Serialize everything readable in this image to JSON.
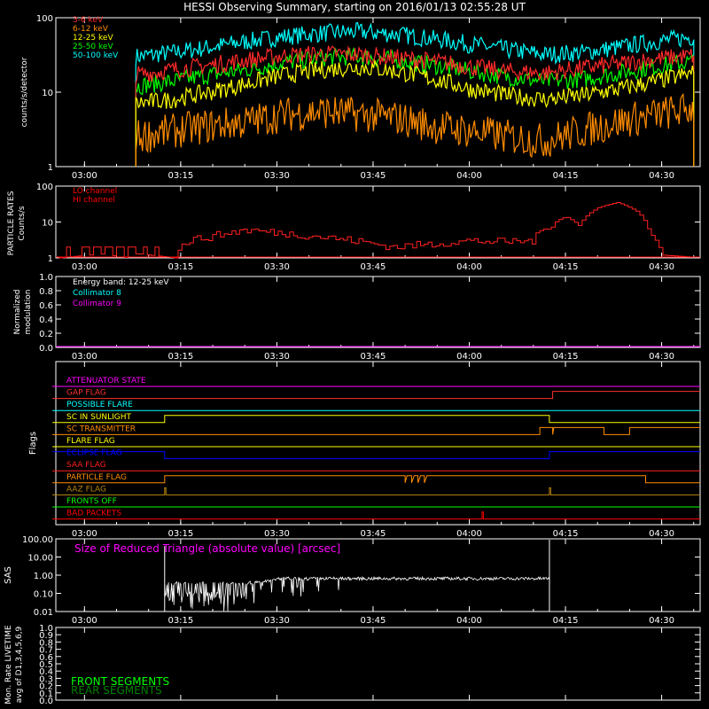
{
  "title": "HESSI Observing Summary, starting on 2016/01/13 02:55:28 UT",
  "time_ticks": [
    "03:00",
    "03:15",
    "03:30",
    "03:45",
    "04:00",
    "04:15",
    "04:30"
  ],
  "chart_data": [
    {
      "type": "line",
      "name": "count-rates",
      "ylabel": "counts/s/detector",
      "scale": "log",
      "ylim": [
        1,
        100
      ],
      "yticks": [
        {
          "v": 1,
          "l": "1"
        },
        {
          "v": 10,
          "l": "10"
        },
        {
          "v": 100,
          "l": "100"
        }
      ],
      "x_range_minutes": [
        8,
        95
      ],
      "series": [
        {
          "name": "3-6 keV",
          "color": "#ff2a2a",
          "shape": [
            17,
            20,
            23,
            27,
            31,
            33,
            32,
            29,
            26,
            22,
            19,
            18,
            21,
            24,
            28,
            31
          ]
        },
        {
          "name": "6-12 keV",
          "color": "#ff8c00",
          "shape": [
            2.5,
            3,
            3.5,
            4,
            5,
            5.5,
            5,
            4.5,
            3.5,
            3,
            2.5,
            2.2,
            3,
            4,
            5,
            6
          ]
        },
        {
          "name": "12-25 keV",
          "color": "#ffff00",
          "shape": [
            7,
            8,
            10,
            13,
            17,
            20,
            22,
            19,
            15,
            11,
            9,
            8,
            9,
            11,
            14,
            18
          ]
        },
        {
          "name": "25-50 keV",
          "color": "#00ff00",
          "shape": [
            12,
            14,
            17,
            20,
            25,
            29,
            30,
            27,
            23,
            19,
            16,
            14,
            15,
            18,
            22,
            26
          ]
        },
        {
          "name": "50-100 keV",
          "color": "#00ffff",
          "shape": [
            30,
            34,
            40,
            48,
            56,
            62,
            65,
            60,
            52,
            44,
            37,
            32,
            34,
            40,
            48,
            55
          ]
        }
      ]
    },
    {
      "type": "line",
      "name": "particle-rates",
      "ylabel": "PARTICLE RATES Counts/s",
      "scale": "log",
      "ylim": [
        1,
        100
      ],
      "yticks": [
        {
          "v": 1,
          "l": "1"
        },
        {
          "v": 10,
          "l": "10"
        },
        {
          "v": 100,
          "l": "100"
        }
      ],
      "series": [
        {
          "name": "LO channel",
          "color": "#ff0000"
        },
        {
          "name": "HI channel",
          "color": "#ff0000"
        }
      ]
    },
    {
      "type": "line",
      "name": "modulation",
      "ylabel": "Normalized modulation",
      "ylim": [
        0,
        1
      ],
      "yticks": [
        {
          "v": 0,
          "l": "0.0"
        },
        {
          "v": 0.2,
          "l": "0.2"
        },
        {
          "v": 0.4,
          "l": "0.4"
        },
        {
          "v": 0.6,
          "l": "0.6"
        },
        {
          "v": 0.8,
          "l": "0.8"
        },
        {
          "v": 1.0,
          "l": "1.0"
        }
      ],
      "annotation": "Energy band: 12-25 keV",
      "series": [
        {
          "name": "Collimator 8",
          "color": "#00ffff"
        },
        {
          "name": "Collimator 9",
          "color": "#ff00ff"
        }
      ]
    },
    {
      "type": "line",
      "name": "flags",
      "ylabel": "Flags",
      "flags": [
        {
          "name": "ATTENUATOR STATE",
          "color": "#ff00ff"
        },
        {
          "name": "GAP FLAG",
          "color": "#ff3030"
        },
        {
          "name": "POSSIBLE FLARE",
          "color": "#00ffff"
        },
        {
          "name": "SC IN SUNLIGHT",
          "color": "#ffff00"
        },
        {
          "name": "SC TRANSMITTER",
          "color": "#ff8c00"
        },
        {
          "name": "FLARE FLAG",
          "color": "#ffff00"
        },
        {
          "name": "ECLIPSE FLAG",
          "color": "#0000ff"
        },
        {
          "name": "SAA FLAG",
          "color": "#ff2020"
        },
        {
          "name": "PARTICLE FLAG",
          "color": "#ff8c00"
        },
        {
          "name": "AAZ FLAG",
          "color": "#b8860b"
        },
        {
          "name": "FRONTS OFF",
          "color": "#00ff00"
        },
        {
          "name": "BAD PACKETS",
          "color": "#ff0000"
        }
      ]
    },
    {
      "type": "line",
      "name": "sas",
      "ylabel": "SAS",
      "scale": "log",
      "ylim": [
        0.01,
        100
      ],
      "yticks": [
        {
          "v": 0.01,
          "l": "0.01"
        },
        {
          "v": 0.1,
          "l": "0.10"
        },
        {
          "v": 1,
          "l": "1.00"
        },
        {
          "v": 10,
          "l": "10.00"
        },
        {
          "v": 100,
          "l": "100.00"
        }
      ],
      "annotation": "Size of Reduced Triangle (absolute value) [arcsec]",
      "series": [
        {
          "name": "",
          "color": "#ffffff"
        }
      ]
    },
    {
      "type": "line",
      "name": "livetime",
      "ylabel": "Mon. Rate LIVETIME avg of D1,3,4,5,6,9",
      "ylim": [
        0,
        1
      ],
      "yticks": [
        {
          "v": 0,
          "l": "0.0"
        },
        {
          "v": 0.1,
          "l": "0.1"
        },
        {
          "v": 0.2,
          "l": "0.2"
        },
        {
          "v": 0.3,
          "l": "0.3"
        },
        {
          "v": 0.4,
          "l": "0.4"
        },
        {
          "v": 0.5,
          "l": "0.5"
        },
        {
          "v": 0.6,
          "l": "0.6"
        },
        {
          "v": 0.7,
          "l": "0.7"
        },
        {
          "v": 0.8,
          "l": "0.8"
        },
        {
          "v": 0.9,
          "l": "0.9"
        },
        {
          "v": 1.0,
          "l": "1.0"
        }
      ],
      "series": [
        {
          "name": "FRONT SEGMENTS",
          "color": "#00ff00"
        },
        {
          "name": "REAR SEGMENTS",
          "color": "#008000"
        }
      ]
    }
  ]
}
